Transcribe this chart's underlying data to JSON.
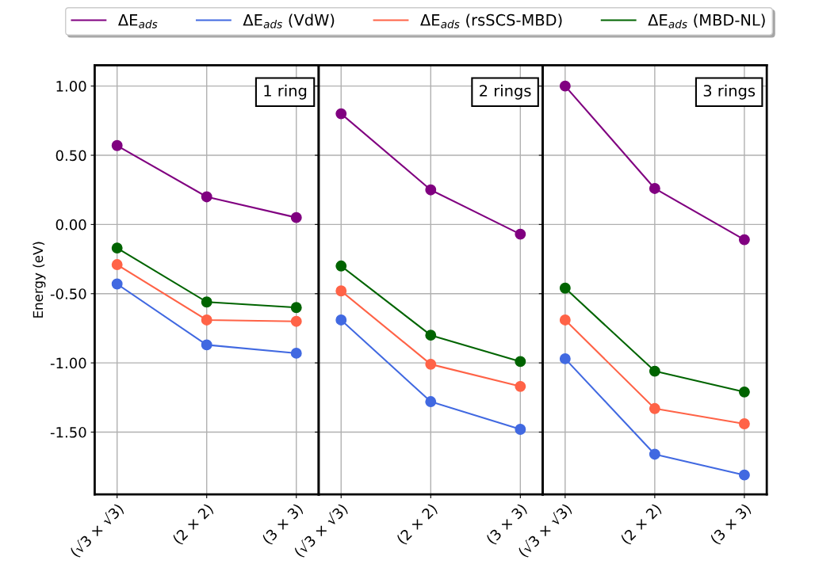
{
  "chart_data": [
    {
      "type": "line",
      "title": "1 ring",
      "ylabel": "Energy (eV)",
      "categories": [
        "(√3 × √3)",
        "(2 × 2)",
        "(3 × 3)"
      ],
      "ylim": [
        -1.95,
        1.15
      ],
      "yticks": [
        {
          "value": 1.0,
          "label": "1.00"
        },
        {
          "value": 0.5,
          "label": "0.50"
        },
        {
          "value": 0.0,
          "label": "0.00"
        },
        {
          "value": -0.5,
          "label": "-0.50"
        },
        {
          "value": -1.0,
          "label": "-1.00"
        },
        {
          "value": -1.5,
          "label": "-1.50"
        }
      ],
      "grid": true,
      "marker": "circle",
      "legend": "top",
      "series": [
        {
          "name": "ΔE$_{ads}$",
          "color": "#800080",
          "values": [
            0.57,
            0.2,
            0.05
          ]
        },
        {
          "name": "ΔE$_{ads}$ (VdW)",
          "color": "#4169e1",
          "values": [
            -0.43,
            -0.87,
            -0.93
          ]
        },
        {
          "name": "ΔE$_{ads}$ (rsSCS-MBD)",
          "color": "#ff6347",
          "values": [
            -0.29,
            -0.69,
            -0.7
          ]
        },
        {
          "name": "ΔE$_{ads}$ (MBD-NL)",
          "color": "#006400",
          "values": [
            -0.17,
            -0.56,
            -0.6
          ]
        }
      ]
    },
    {
      "type": "line",
      "title": "2 rings",
      "categories": [
        "(√3 × √3)",
        "(2 × 2)",
        "(3 × 3)"
      ],
      "ylim": [
        -1.95,
        1.15
      ],
      "tick_labels": "x",
      "grid": true,
      "marker": "circle",
      "series": [
        {
          "color": "#800080",
          "values": [
            0.8,
            0.25,
            -0.07
          ]
        },
        {
          "color": "#4169e1",
          "values": [
            -0.69,
            -1.28,
            -1.48
          ]
        },
        {
          "color": "#ff6347",
          "values": [
            -0.48,
            -1.01,
            -1.17
          ]
        },
        {
          "color": "#006400",
          "values": [
            -0.3,
            -0.8,
            -0.99
          ]
        }
      ]
    },
    {
      "type": "line",
      "title": "3 rings",
      "categories": [
        "(√3 × √3)",
        "(2 × 2)",
        "(3 × 3)"
      ],
      "ylim": [
        -1.95,
        1.15
      ],
      "tick_labels": "x",
      "grid": true,
      "marker": "circle",
      "series": [
        {
          "color": "#800080",
          "values": [
            1.0,
            0.26,
            -0.11
          ]
        },
        {
          "color": "#4169e1",
          "values": [
            -0.97,
            -1.66,
            -1.81
          ]
        },
        {
          "color": "#ff6347",
          "values": [
            -0.69,
            -1.33,
            -1.44
          ]
        },
        {
          "color": "#006400",
          "values": [
            -0.46,
            -1.06,
            -1.21
          ]
        }
      ]
    }
  ]
}
